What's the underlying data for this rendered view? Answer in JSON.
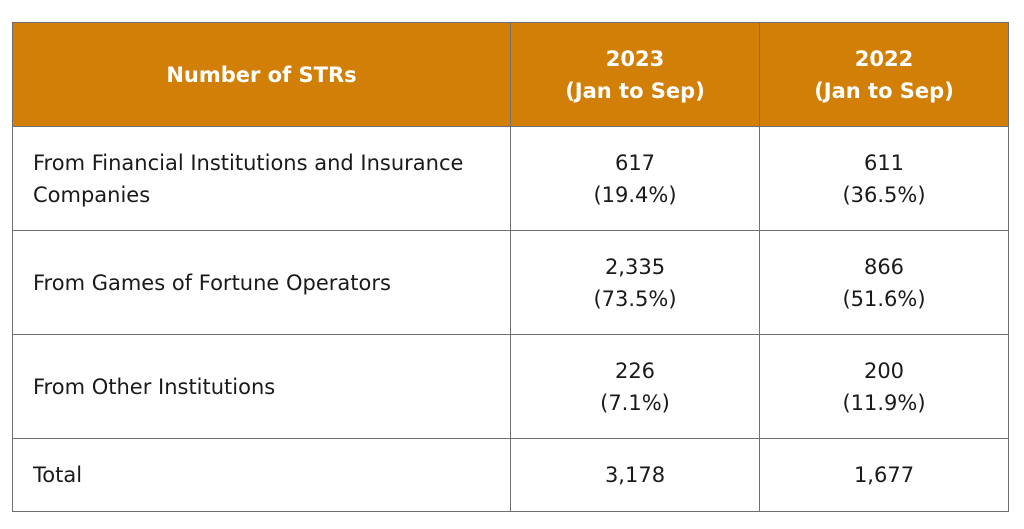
{
  "table": {
    "header": {
      "label": "Number of STRs",
      "col1": {
        "year": "2023",
        "period": "(Jan to Sep)"
      },
      "col2": {
        "year": "2022",
        "period": "(Jan to Sep)"
      }
    },
    "rows": [
      {
        "label_line1": "From Financial Institutions and Insurance",
        "label_line2": "Companies",
        "v2023": "617",
        "p2023": "(19.4%)",
        "v2022": "611",
        "p2022": "(36.5%)"
      },
      {
        "label": "From Games of Fortune Operators",
        "v2023": "2,335",
        "p2023": "(73.5%)",
        "v2022": "866",
        "p2022": "(51.6%)"
      },
      {
        "label": "From Other Institutions",
        "v2023": "226",
        "p2023": "(7.1%)",
        "v2022": "200",
        "p2022": "(11.9%)"
      },
      {
        "label": "Total",
        "v2023": "3,178",
        "v2022": "1,677"
      }
    ]
  },
  "colors": {
    "header_bg": "#d17f06",
    "header_text": "#ffffff",
    "border": "#6f6f6f"
  }
}
